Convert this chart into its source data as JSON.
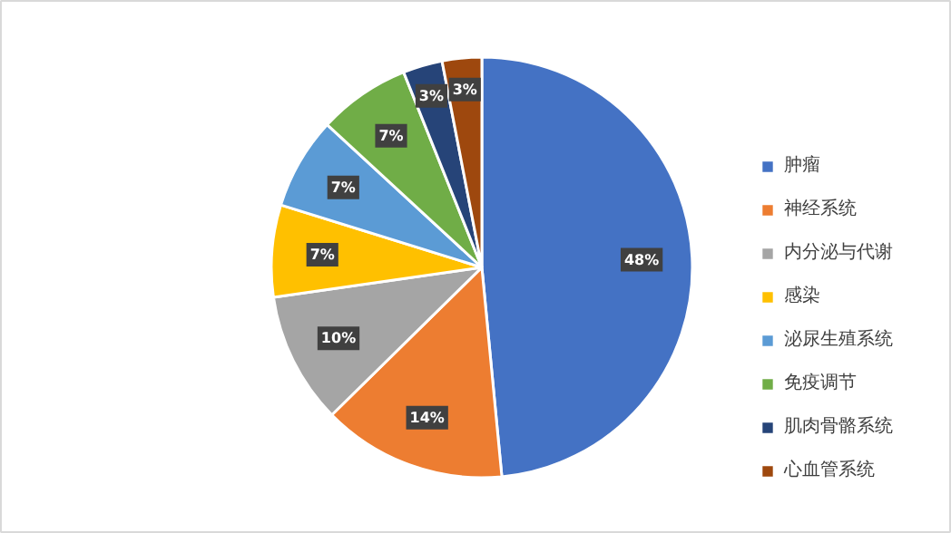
{
  "chart_data": {
    "type": "pie",
    "categories": [
      "肿瘤",
      "神经系统",
      "内分泌与代谢",
      "感染",
      "泌尿生殖系统",
      "免疫调节",
      "肌肉骨骼系统",
      "心血管系统"
    ],
    "values": [
      48,
      14,
      10,
      7,
      7,
      7,
      3,
      3
    ],
    "colors": [
      "#4472c4",
      "#ed7d31",
      "#a5a5a5",
      "#ffc000",
      "#5b9bd5",
      "#70ad47",
      "#264478",
      "#9e480e"
    ],
    "value_labels": [
      "48%",
      "14%",
      "10%",
      "7%",
      "7%",
      "7%",
      "3%",
      "3%"
    ],
    "legend": "right"
  }
}
